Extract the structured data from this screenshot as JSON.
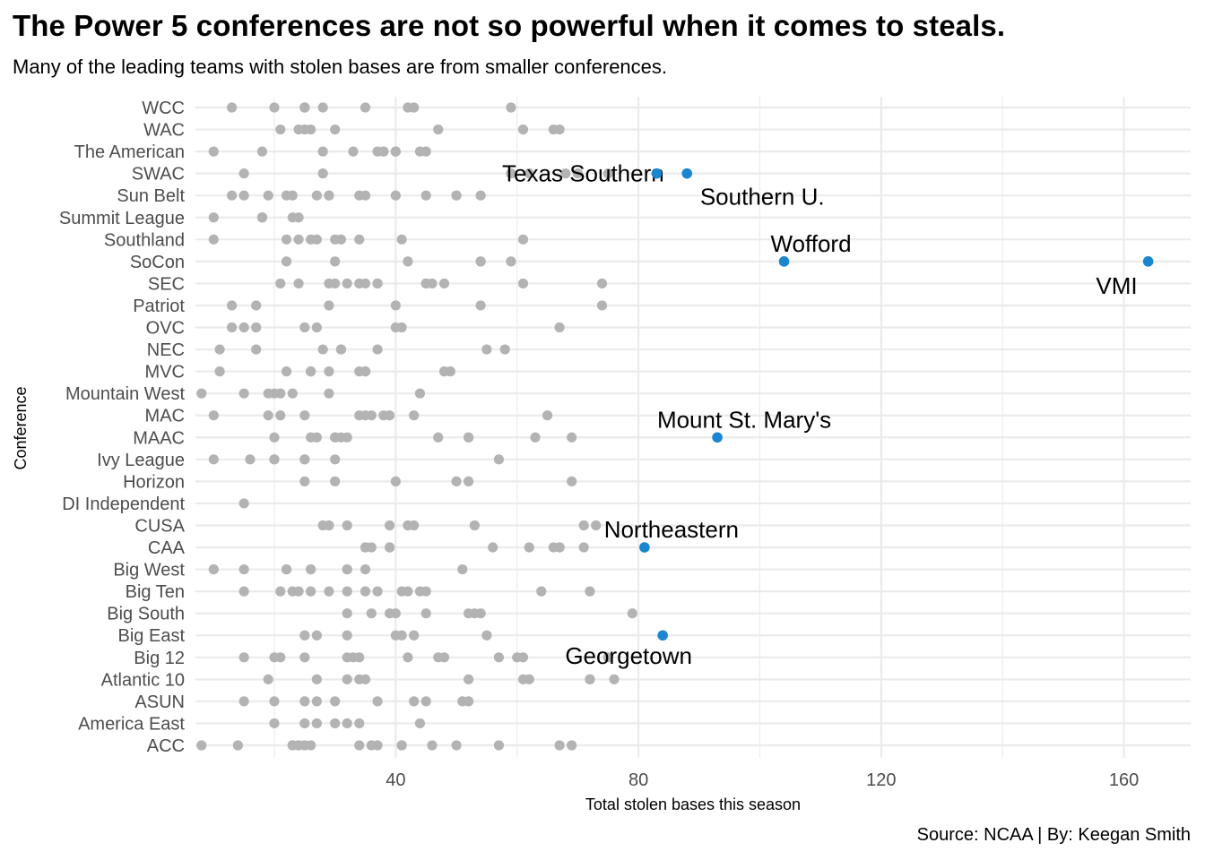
{
  "title": "The Power 5 conferences are not so powerful when it comes to steals.",
  "subtitle": "Many of the leading teams with stolen bases are from smaller conferences.",
  "caption": "Source: NCAA | By: Keegan Smith",
  "colors": {
    "default_point": "#b3b3b3",
    "highlight_point": "#1a86d0",
    "grid": "#ebebeb"
  },
  "chart_data": {
    "type": "scatter",
    "title": "The Power 5 conferences are not so powerful when it comes to steals.",
    "subtitle": "Many of the leading teams with stolen bases are from smaller conferences.",
    "xlabel": "Total stolen bases this season",
    "ylabel": "Conference",
    "xlim": [
      7,
      171
    ],
    "x_ticks": [
      40,
      80,
      120,
      160
    ],
    "grid": true,
    "categories": [
      "ACC",
      "America East",
      "ASUN",
      "Atlantic 10",
      "Big 12",
      "Big East",
      "Big South",
      "Big Ten",
      "Big West",
      "CAA",
      "CUSA",
      "DI Independent",
      "Horizon",
      "Ivy League",
      "MAAC",
      "MAC",
      "Mountain West",
      "MVC",
      "NEC",
      "OVC",
      "Patriot",
      "SEC",
      "SoCon",
      "Southland",
      "Summit League",
      "Sun Belt",
      "SWAC",
      "The American",
      "WAC",
      "WCC"
    ],
    "points": {
      "ACC": [
        8,
        14,
        23,
        24,
        25,
        26,
        24,
        23,
        34,
        36,
        37,
        41,
        41,
        46,
        50,
        57,
        67,
        69
      ],
      "America East": [
        20,
        25,
        27,
        30,
        32,
        34,
        44
      ],
      "ASUN": [
        15,
        20,
        25,
        27,
        30,
        37,
        43,
        45,
        51,
        52
      ],
      "Atlantic 10": [
        19,
        27,
        32,
        34,
        35,
        52,
        61,
        62,
        72,
        72,
        76
      ],
      "Big 12": [
        15,
        20,
        21,
        25,
        32,
        33,
        34,
        42,
        47,
        48,
        57,
        60,
        61,
        75
      ],
      "Big East": [
        25,
        27,
        32,
        40,
        41,
        43,
        55
      ],
      "Big South": [
        32,
        36,
        39,
        40,
        45,
        52,
        53,
        54,
        79
      ],
      "Big Ten": [
        15,
        21,
        23,
        24,
        26,
        29,
        32,
        35,
        37,
        41,
        42,
        44,
        45,
        64,
        72
      ],
      "Big West": [
        10,
        10,
        15,
        22,
        22,
        26,
        26,
        32,
        32,
        35,
        51
      ],
      "CAA": [
        35,
        35,
        36,
        39,
        39,
        56,
        62,
        66,
        67,
        67,
        71
      ],
      "CUSA": [
        28,
        29,
        32,
        39,
        42,
        43,
        53,
        71,
        73
      ],
      "DI Independent": [
        15
      ],
      "Horizon": [
        25,
        30,
        40,
        50,
        52,
        69
      ],
      "Ivy League": [
        10,
        16,
        20,
        20,
        25,
        25,
        30,
        57
      ],
      "MAAC": [
        20,
        26,
        27,
        30,
        30,
        31,
        32,
        47,
        52,
        52,
        63,
        69
      ],
      "MAC": [
        10,
        19,
        21,
        25,
        34,
        35,
        36,
        38,
        39,
        43,
        65
      ],
      "Mountain West": [
        8,
        15,
        19,
        20,
        21,
        23,
        29,
        44
      ],
      "MVC": [
        11,
        22,
        26,
        26,
        29,
        34,
        35,
        35,
        48,
        49
      ],
      "NEC": [
        11,
        17,
        28,
        31,
        31,
        37,
        55,
        58
      ],
      "OVC": [
        13,
        15,
        17,
        25,
        27,
        40,
        41,
        67
      ],
      "Patriot": [
        13,
        17,
        29,
        40,
        54,
        74
      ],
      "SEC": [
        21,
        24,
        29,
        30,
        32,
        34,
        35,
        37,
        37,
        45,
        45,
        46,
        48,
        61,
        74
      ],
      "SoCon": [
        22,
        30,
        42,
        54,
        54,
        59
      ],
      "Southland": [
        10,
        22,
        24,
        26,
        27,
        30,
        31,
        34,
        41,
        61
      ],
      "Summit League": [
        10,
        18,
        18,
        23,
        24
      ],
      "Sun Belt": [
        13,
        15,
        19,
        22,
        23,
        27,
        29,
        29,
        34,
        35,
        40,
        45,
        50,
        50,
        54
      ],
      "SWAC": [
        15,
        28,
        59,
        62,
        68,
        70,
        75
      ],
      "The American": [
        10,
        18,
        28,
        33,
        37,
        38,
        38,
        40,
        40,
        44,
        45
      ],
      "WAC": [
        21,
        24,
        25,
        26,
        30,
        47,
        61,
        66,
        67
      ],
      "WCC": [
        13,
        20,
        25,
        25,
        25,
        28,
        35,
        42,
        43,
        59
      ]
    },
    "highlights": [
      {
        "team": "VMI",
        "conference": "SoCon",
        "value": 164
      },
      {
        "team": "Wofford",
        "conference": "SoCon",
        "value": 104
      },
      {
        "team": "Mount St. Mary's",
        "conference": "MAAC",
        "value": 93
      },
      {
        "team": "Southern U.",
        "conference": "SWAC",
        "value": 88
      },
      {
        "team": "Texas Southern",
        "conference": "SWAC",
        "value": 83
      },
      {
        "team": "Georgetown",
        "conference": "Big East",
        "value": 84
      },
      {
        "team": "Northeastern",
        "conference": "CAA",
        "value": 81
      }
    ]
  }
}
